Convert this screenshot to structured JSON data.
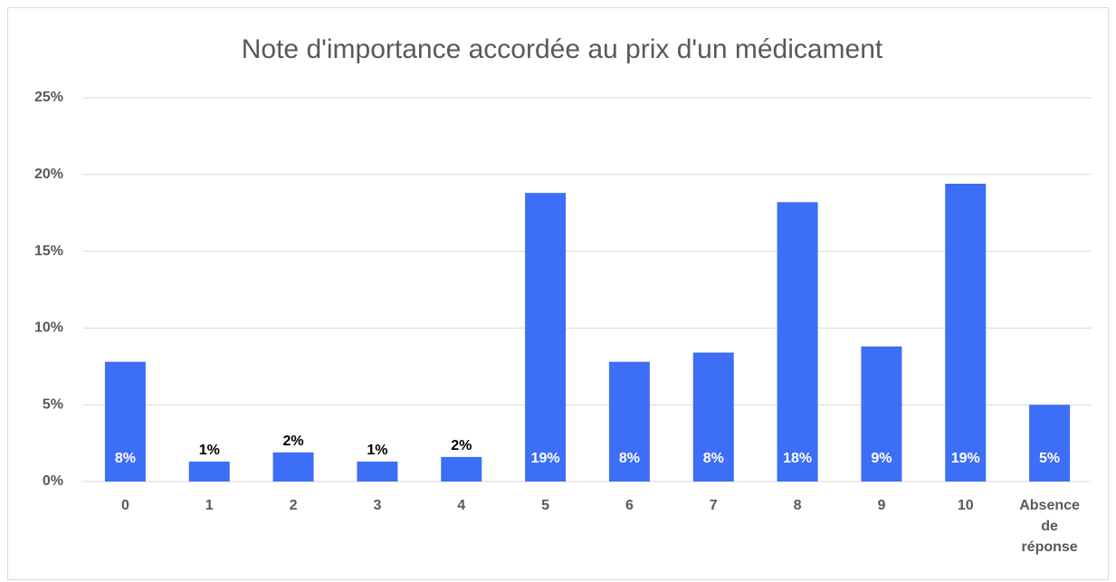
{
  "chart_data": {
    "type": "bar",
    "title": "Note d'importance accordée au prix d'un médicament",
    "categories": [
      "0",
      "1",
      "2",
      "3",
      "4",
      "5",
      "6",
      "7",
      "8",
      "9",
      "10",
      "Absence de réponse"
    ],
    "values": [
      7.8,
      1.3,
      1.9,
      1.3,
      1.6,
      18.8,
      7.8,
      8.4,
      18.2,
      8.8,
      19.4,
      5.0
    ],
    "value_labels": [
      "8%",
      "1%",
      "2%",
      "1%",
      "2%",
      "19%",
      "8%",
      "8%",
      "18%",
      "9%",
      "19%",
      "5%"
    ],
    "color": "#3d6ef7",
    "ylim": [
      0,
      25
    ],
    "yticks": [
      {
        "value": 0,
        "label": "0%"
      },
      {
        "value": 5,
        "label": "5%"
      },
      {
        "value": 10,
        "label": "10%"
      },
      {
        "value": 15,
        "label": "15%"
      },
      {
        "value": 20,
        "label": "20%"
      },
      {
        "value": 25,
        "label": "25%"
      }
    ],
    "grid": true
  }
}
